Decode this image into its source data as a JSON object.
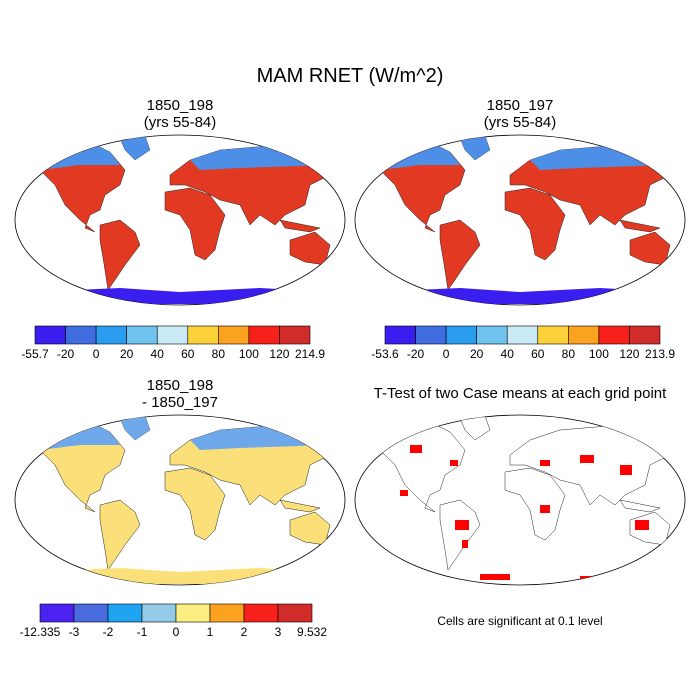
{
  "title": "MAM RNET (W/m^2)",
  "panels": [
    {
      "title_lines": [
        "1850_198",
        "(yrs 55-84)"
      ],
      "colorbar": {
        "colors": [
          "#3a1ef0",
          "#3f6ce0",
          "#2a9df0",
          "#6fc3ee",
          "#c9e9f5",
          "#fbd23a",
          "#fba31f",
          "#f8201a",
          "#d12c2a"
        ],
        "labels": [
          "-55.7",
          "-20",
          "0",
          "20",
          "40",
          "60",
          "80",
          "100",
          "120",
          "214.9"
        ]
      }
    },
    {
      "title_lines": [
        "1850_197",
        "(yrs 55-84)"
      ],
      "colorbar": {
        "colors": [
          "#3a1ef0",
          "#3f6ce0",
          "#2a9df0",
          "#6fc3ee",
          "#c9e9f5",
          "#fbd23a",
          "#fba31f",
          "#f8201a",
          "#d12c2a"
        ],
        "labels": [
          "-53.6",
          "-20",
          "0",
          "20",
          "40",
          "60",
          "80",
          "100",
          "120",
          "213.9"
        ]
      }
    },
    {
      "title_lines": [
        "1850_198",
        "- 1850_197"
      ],
      "colorbar": {
        "colors": [
          "#4b22f0",
          "#4a6be0",
          "#1ea4f0",
          "#94cbe8",
          "#fbef84",
          "#fba31f",
          "#f8201a",
          "#d12c2a"
        ],
        "labels": [
          "-12.335",
          "-3",
          "-2",
          "-1",
          "0",
          "1",
          "2",
          "3",
          "9.532"
        ]
      }
    },
    {
      "title_lines": [
        "T-Test of two Case means at each grid point"
      ],
      "note": "Cells are significant at 0.1 level"
    }
  ]
}
